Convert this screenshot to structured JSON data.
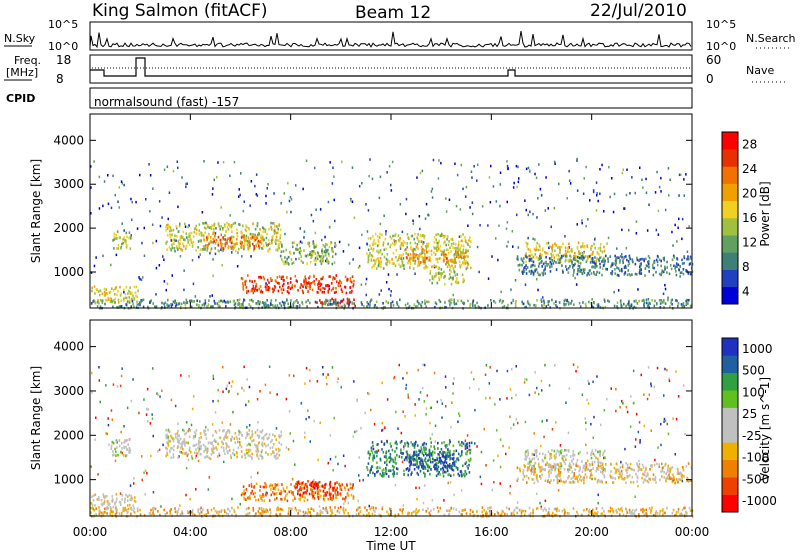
{
  "header": {
    "title": "King Salmon (fitACF)",
    "beam": "Beam 12",
    "date": "22/Jul/2010"
  },
  "strips": {
    "nsky_label": "N.Sky",
    "nsky_ticks": [
      "10^5",
      "10^0"
    ],
    "nsearch_label": "N.Search",
    "nsearch_ticks": [
      "10^5",
      "10^0"
    ],
    "freq_label_1": "Freq.",
    "freq_label_2": "[MHz]",
    "freq_ticks": [
      "18",
      "8"
    ],
    "nave_label": "Nave",
    "nave_ticks": [
      "60",
      "0"
    ],
    "cpid_label": "CPID",
    "cpid_text": "normalsound (fast) -157"
  },
  "chart_data": [
    {
      "type": "heatmap",
      "name": "power",
      "ylabel": "Slant Range [km]",
      "xlabel": "Time UT",
      "x_ticks": [
        "00:00",
        "04:00",
        "08:00",
        "12:00",
        "16:00",
        "20:00",
        "00:00"
      ],
      "xlim_hours": [
        0,
        24
      ],
      "ylim": [
        180,
        4600
      ],
      "y_ticks": [
        1000,
        2000,
        3000,
        4000
      ],
      "colorbar": {
        "label": "Power [dB]",
        "ticks": [
          "28",
          "24",
          "20",
          "16",
          "12",
          "8",
          "4"
        ],
        "range": [
          0,
          30
        ]
      },
      "colors": [
        "#0000d8",
        "#2040c0",
        "#3c8078",
        "#60a060",
        "#a0c040",
        "#f0d020",
        "#f0a000",
        "#f07000",
        "#e83000",
        "#ff0000"
      ],
      "regions": [
        {
          "t": [
            0.0,
            1.9
          ],
          "r": [
            320,
            700
          ],
          "level": 0.55
        },
        {
          "t": [
            0.8,
            1.6
          ],
          "r": [
            1550,
            1950
          ],
          "level": 0.45
        },
        {
          "t": [
            3.0,
            7.6
          ],
          "r": [
            1500,
            2150
          ],
          "level": 0.5
        },
        {
          "t": [
            4.5,
            6.8
          ],
          "r": [
            1550,
            1850
          ],
          "level": 0.75
        },
        {
          "t": [
            6.0,
            10.5
          ],
          "r": [
            550,
            950
          ],
          "level": 0.85
        },
        {
          "t": [
            7.5,
            9.8
          ],
          "r": [
            1200,
            1700
          ],
          "level": 0.4
        },
        {
          "t": [
            9.0,
            10.6
          ],
          "r": [
            250,
            420
          ],
          "level": 0.95
        },
        {
          "t": [
            11.0,
            15.2
          ],
          "r": [
            1100,
            1900
          ],
          "level": 0.5
        },
        {
          "t": [
            12.5,
            13.6
          ],
          "r": [
            1250,
            1550
          ],
          "level": 0.7
        },
        {
          "t": [
            14.0,
            15.0
          ],
          "r": [
            1200,
            1500
          ],
          "level": 0.68
        },
        {
          "t": [
            13.5,
            14.9
          ],
          "r": [
            750,
            1100
          ],
          "level": 0.45
        },
        {
          "t": [
            17.3,
            20.5
          ],
          "r": [
            1250,
            1700
          ],
          "level": 0.55
        },
        {
          "t": [
            17.0,
            24.0
          ],
          "r": [
            950,
            1400
          ],
          "level": 0.25
        },
        {
          "t": [
            0.0,
            24.0
          ],
          "r": [
            200,
            400
          ],
          "level": 0.3
        }
      ]
    },
    {
      "type": "heatmap",
      "name": "velocity",
      "ylabel": "Slant Range [km]",
      "xlabel": "Time UT",
      "x_ticks": [
        "00:00",
        "04:00",
        "08:00",
        "12:00",
        "16:00",
        "20:00",
        "00:00"
      ],
      "xlim_hours": [
        0,
        24
      ],
      "ylim": [
        180,
        4600
      ],
      "y_ticks": [
        1000,
        2000,
        3000,
        4000
      ],
      "colorbar": {
        "label": "Velocity [m s^-1]",
        "ticks": [
          "1000",
          "500",
          "100",
          "25",
          "-25",
          "-100",
          "-500",
          "-1000"
        ]
      },
      "colors": [
        "#ff0000",
        "#f04000",
        "#f08000",
        "#f0b000",
        "#c0c0c0",
        "#c0c0c0",
        "#60c020",
        "#30a040",
        "#2060a0",
        "#2030c0"
      ],
      "regions": [
        {
          "t": [
            0.0,
            1.9
          ],
          "r": [
            320,
            700
          ],
          "level": 0.45
        },
        {
          "t": [
            0.8,
            1.6
          ],
          "r": [
            1550,
            1950
          ],
          "level": 0.5
        },
        {
          "t": [
            3.0,
            7.6
          ],
          "r": [
            1500,
            2150
          ],
          "level": 0.48
        },
        {
          "t": [
            6.0,
            10.5
          ],
          "r": [
            550,
            950
          ],
          "level": 0.25
        },
        {
          "t": [
            8.2,
            10.0
          ],
          "r": [
            650,
            1000
          ],
          "level": 0.08
        },
        {
          "t": [
            11.0,
            15.2
          ],
          "r": [
            1100,
            1900
          ],
          "level": 0.8
        },
        {
          "t": [
            12.5,
            14.5
          ],
          "r": [
            1250,
            1650
          ],
          "level": 0.92
        },
        {
          "t": [
            17.3,
            20.5
          ],
          "r": [
            1250,
            1700
          ],
          "level": 0.5
        },
        {
          "t": [
            17.0,
            24.0
          ],
          "r": [
            950,
            1400
          ],
          "level": 0.4
        },
        {
          "t": [
            0.0,
            24.0
          ],
          "r": [
            200,
            400
          ],
          "level": 0.35
        }
      ]
    }
  ]
}
